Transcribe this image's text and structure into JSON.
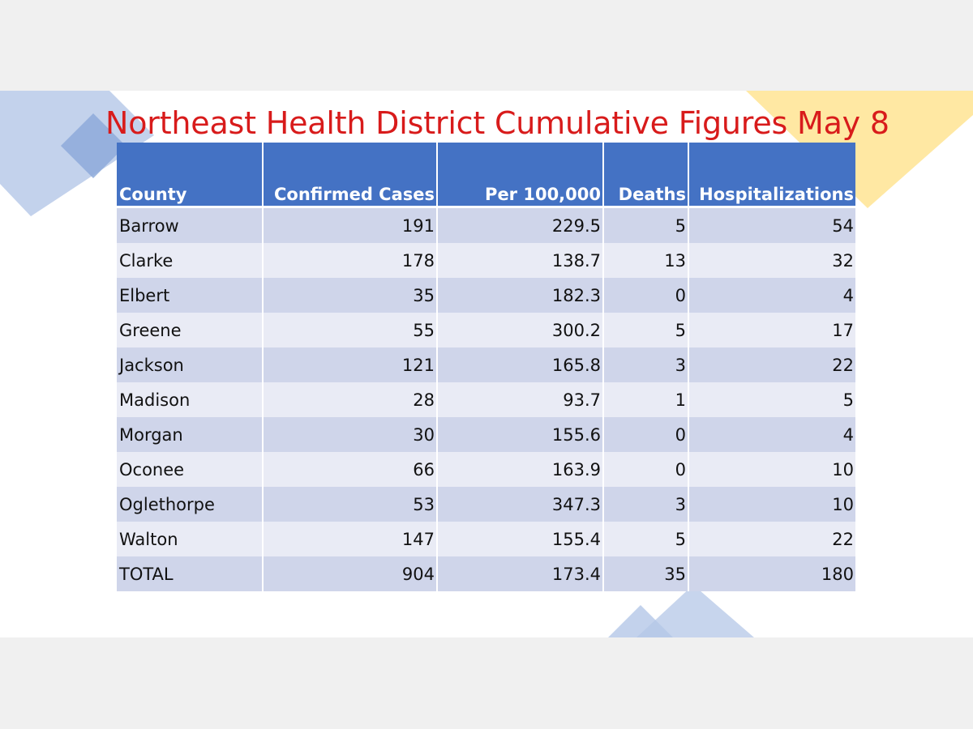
{
  "title": "Northeast Health District Cumulative Figures May 8",
  "colors": {
    "title": "#d81b1b",
    "header_bg": "#4472c4",
    "row_dark": "#cfd5ea",
    "row_light": "#e9ebf5",
    "deco_blue": "#b4c7e7",
    "deco_yellow": "#ffe699"
  },
  "table": {
    "headers": [
      "County",
      "Confirmed Cases",
      "Per 100,000",
      "Deaths",
      "Hospitalizations"
    ],
    "rows": [
      [
        "Barrow",
        "191",
        "229.5",
        "5",
        "54"
      ],
      [
        "Clarke",
        "178",
        "138.7",
        "13",
        "32"
      ],
      [
        "Elbert",
        "35",
        "182.3",
        "0",
        "4"
      ],
      [
        "Greene",
        "55",
        "300.2",
        "5",
        "17"
      ],
      [
        "Jackson",
        "121",
        "165.8",
        "3",
        "22"
      ],
      [
        "Madison",
        "28",
        "93.7",
        "1",
        "5"
      ],
      [
        "Morgan",
        "30",
        "155.6",
        "0",
        "4"
      ],
      [
        "Oconee",
        "66",
        "163.9",
        "0",
        "10"
      ],
      [
        "Oglethorpe",
        "53",
        "347.3",
        "3",
        "10"
      ],
      [
        "Walton",
        "147",
        "155.4",
        "5",
        "22"
      ],
      [
        "TOTAL",
        "904",
        "173.4",
        "35",
        "180"
      ]
    ]
  }
}
